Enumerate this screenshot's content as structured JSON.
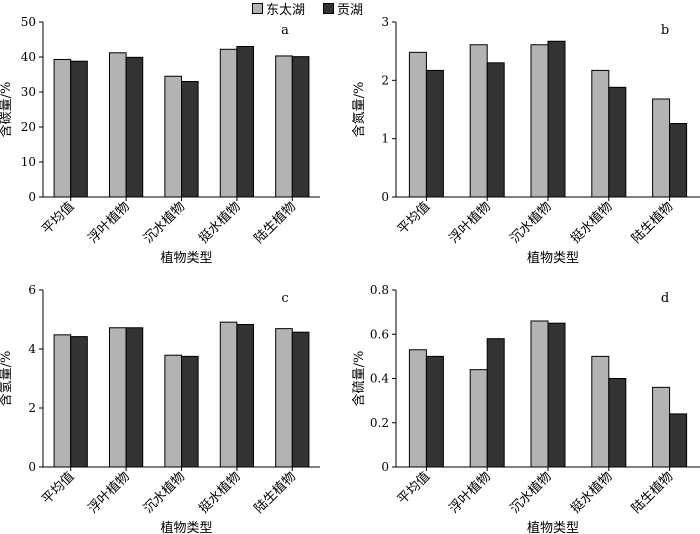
{
  "legend": {
    "items": [
      {
        "name": "东太湖",
        "color": "#b3b3b3"
      },
      {
        "name": "贡湖",
        "color": "#333333"
      }
    ]
  },
  "chart_data": [
    {
      "type": "bar",
      "panel_label": "a",
      "ylabel": "含碳量/%",
      "xlabel": "植物类型",
      "categories": [
        "平均值",
        "浮叶植物",
        "沉水植物",
        "挺水植物",
        "陆生植物"
      ],
      "ylim": [
        0,
        50
      ],
      "yticks": [
        0,
        10,
        20,
        30,
        40,
        50
      ],
      "ytick_labels": [
        "0",
        "10",
        "20",
        "30",
        "40",
        "50"
      ],
      "series": [
        {
          "name": "东太湖",
          "values": [
            39.3,
            41.2,
            34.5,
            42.2,
            40.3
          ]
        },
        {
          "name": "贡湖",
          "values": [
            38.8,
            39.9,
            33.0,
            43.0,
            40.1
          ]
        }
      ]
    },
    {
      "type": "bar",
      "panel_label": "b",
      "ylabel": "含氮量/%",
      "xlabel": "植物类型",
      "categories": [
        "平均值",
        "浮叶植物",
        "沉水植物",
        "挺水植物",
        "陆生植物"
      ],
      "ylim": [
        0,
        3
      ],
      "yticks": [
        0,
        1,
        2,
        3
      ],
      "ytick_labels": [
        "0",
        "1",
        "2",
        "3"
      ],
      "series": [
        {
          "name": "东太湖",
          "values": [
            2.48,
            2.61,
            2.61,
            2.17,
            1.68
          ]
        },
        {
          "name": "贡湖",
          "values": [
            2.17,
            2.3,
            2.67,
            1.88,
            1.26
          ]
        }
      ]
    },
    {
      "type": "bar",
      "panel_label": "c",
      "ylabel": "含氢量/%",
      "xlabel": "植物类型",
      "categories": [
        "平均值",
        "浮叶植物",
        "沉水植物",
        "挺水植物",
        "陆生植物"
      ],
      "ylim": [
        0,
        6
      ],
      "yticks": [
        0,
        2,
        4,
        6
      ],
      "ytick_labels": [
        "0",
        "2",
        "4",
        "6"
      ],
      "series": [
        {
          "name": "东太湖",
          "values": [
            4.48,
            4.72,
            3.79,
            4.91,
            4.69
          ]
        },
        {
          "name": "贡湖",
          "values": [
            4.42,
            4.72,
            3.75,
            4.83,
            4.57
          ]
        }
      ]
    },
    {
      "type": "bar",
      "panel_label": "d",
      "ylabel": "含硫量/%",
      "xlabel": "植物类型",
      "categories": [
        "平均值",
        "浮叶植物",
        "沉水植物",
        "挺水植物",
        "陆生植物"
      ],
      "ylim": [
        0,
        0.8
      ],
      "yticks": [
        0,
        0.2,
        0.4,
        0.6,
        0.8
      ],
      "ytick_labels": [
        "0",
        "0.2",
        "0.4",
        "0.6",
        "0.8"
      ],
      "series": [
        {
          "name": "东太湖",
          "values": [
            0.53,
            0.44,
            0.66,
            0.5,
            0.36
          ]
        },
        {
          "name": "贡湖",
          "values": [
            0.5,
            0.58,
            0.65,
            0.4,
            0.24
          ]
        }
      ]
    }
  ]
}
